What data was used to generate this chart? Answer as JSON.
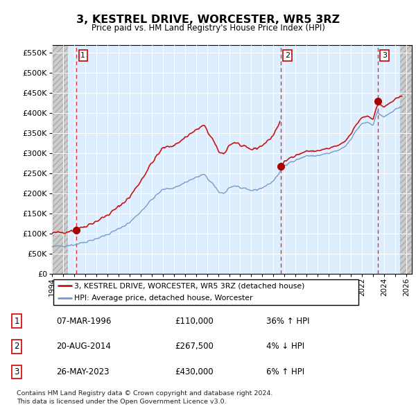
{
  "title": "3, KESTREL DRIVE, WORCESTER, WR5 3RZ",
  "subtitle": "Price paid vs. HM Land Registry's House Price Index (HPI)",
  "ylim": [
    0,
    570000
  ],
  "yticks": [
    0,
    50000,
    100000,
    150000,
    200000,
    250000,
    300000,
    350000,
    400000,
    450000,
    500000,
    550000
  ],
  "ytick_labels": [
    "£0",
    "£50K",
    "£100K",
    "£150K",
    "£200K",
    "£250K",
    "£300K",
    "£350K",
    "£400K",
    "£450K",
    "£500K",
    "£550K"
  ],
  "plot_bg_color": "#ddeeff",
  "sale_prices": [
    110000,
    267500,
    430000
  ],
  "sale_labels": [
    "1",
    "2",
    "3"
  ],
  "sale_hpi_pct": [
    "36% ↑ HPI",
    "4% ↓ HPI",
    "6% ↑ HPI"
  ],
  "sale_dates_str": [
    "07-MAR-1996",
    "20-AUG-2014",
    "26-MAY-2023"
  ],
  "sale_price_str": [
    "£110,000",
    "£267,500",
    "£430,000"
  ],
  "vline_color": "#dd3333",
  "sale_dot_color": "#aa0000",
  "red_line_color": "#cc1111",
  "blue_line_color": "#7799cc",
  "legend_label_red": "3, KESTREL DRIVE, WORCESTER, WR5 3RZ (detached house)",
  "legend_label_blue": "HPI: Average price, detached house, Worcester",
  "footer": "Contains HM Land Registry data © Crown copyright and database right 2024.\nThis data is licensed under the Open Government Licence v3.0.",
  "xmin": 1994.0,
  "xmax": 2026.5,
  "hatch_left_end": 1995.42,
  "hatch_right_start": 2025.42
}
